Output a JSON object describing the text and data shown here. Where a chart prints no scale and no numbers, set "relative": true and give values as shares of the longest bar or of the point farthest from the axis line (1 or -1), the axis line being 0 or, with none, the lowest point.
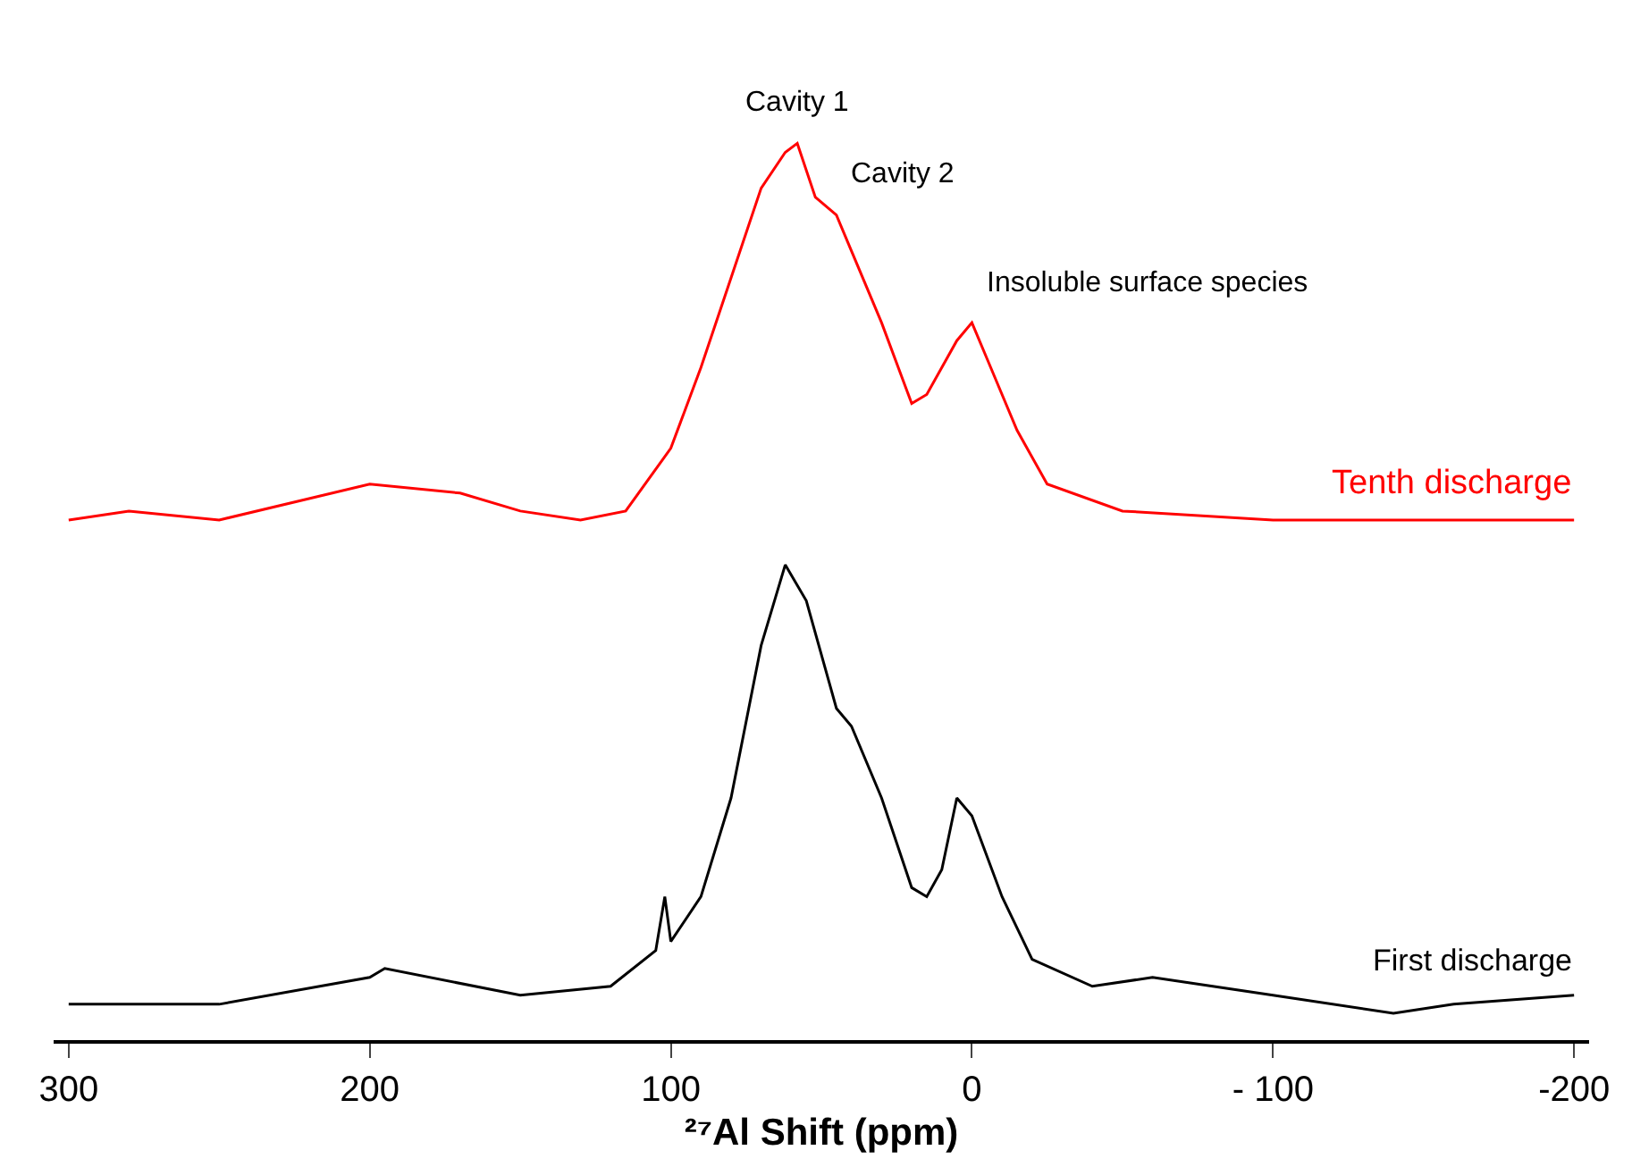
{
  "chart_data": {
    "type": "line",
    "relative": true,
    "xlabel": "²⁷Al Shift (ppm)",
    "xlim": [
      305,
      -205
    ],
    "xticks": [
      300,
      200,
      100,
      0,
      {
        "value": -100,
        "label": "- 100"
      },
      -200
    ],
    "legend": false,
    "marker": "none",
    "line_style": "solid",
    "series": [
      {
        "name": "Tenth discharge",
        "color": "#ff0000",
        "x": [
          300,
          280,
          250,
          200,
          170,
          150,
          130,
          115,
          100,
          90,
          80,
          70,
          62,
          58,
          52,
          45,
          40,
          30,
          20,
          15,
          5,
          0,
          -5,
          -15,
          -25,
          -50,
          -100,
          -150,
          -200
        ],
        "values": [
          0.58,
          0.59,
          0.58,
          0.62,
          0.61,
          0.59,
          0.58,
          0.59,
          0.66,
          0.75,
          0.85,
          0.95,
          0.99,
          1.0,
          0.94,
          0.92,
          0.88,
          0.8,
          0.71,
          0.72,
          0.78,
          0.8,
          0.76,
          0.68,
          0.62,
          0.59,
          0.58,
          0.58,
          0.58
        ]
      },
      {
        "name": "First discharge",
        "color": "#000000",
        "x": [
          300,
          250,
          200,
          195,
          150,
          120,
          105,
          102,
          100,
          90,
          80,
          70,
          62,
          55,
          45,
          40,
          30,
          20,
          15,
          10,
          5,
          0,
          -10,
          -20,
          -40,
          -60,
          -80,
          -100,
          -140,
          -160,
          -200
        ],
        "values": [
          0.04,
          0.04,
          0.07,
          0.08,
          0.05,
          0.06,
          0.1,
          0.16,
          0.11,
          0.16,
          0.27,
          0.44,
          0.53,
          0.49,
          0.37,
          0.35,
          0.27,
          0.17,
          0.16,
          0.19,
          0.27,
          0.25,
          0.16,
          0.09,
          0.06,
          0.07,
          0.06,
          0.05,
          0.03,
          0.04,
          0.05
        ]
      }
    ],
    "annotations": [
      {
        "text": "Cavity 1",
        "x": 58,
        "y": 1.0
      },
      {
        "text": "Cavity 2",
        "x": 45,
        "y": 0.92
      },
      {
        "text": "Insoluble surface species",
        "x": 0,
        "y": 0.8
      }
    ]
  }
}
